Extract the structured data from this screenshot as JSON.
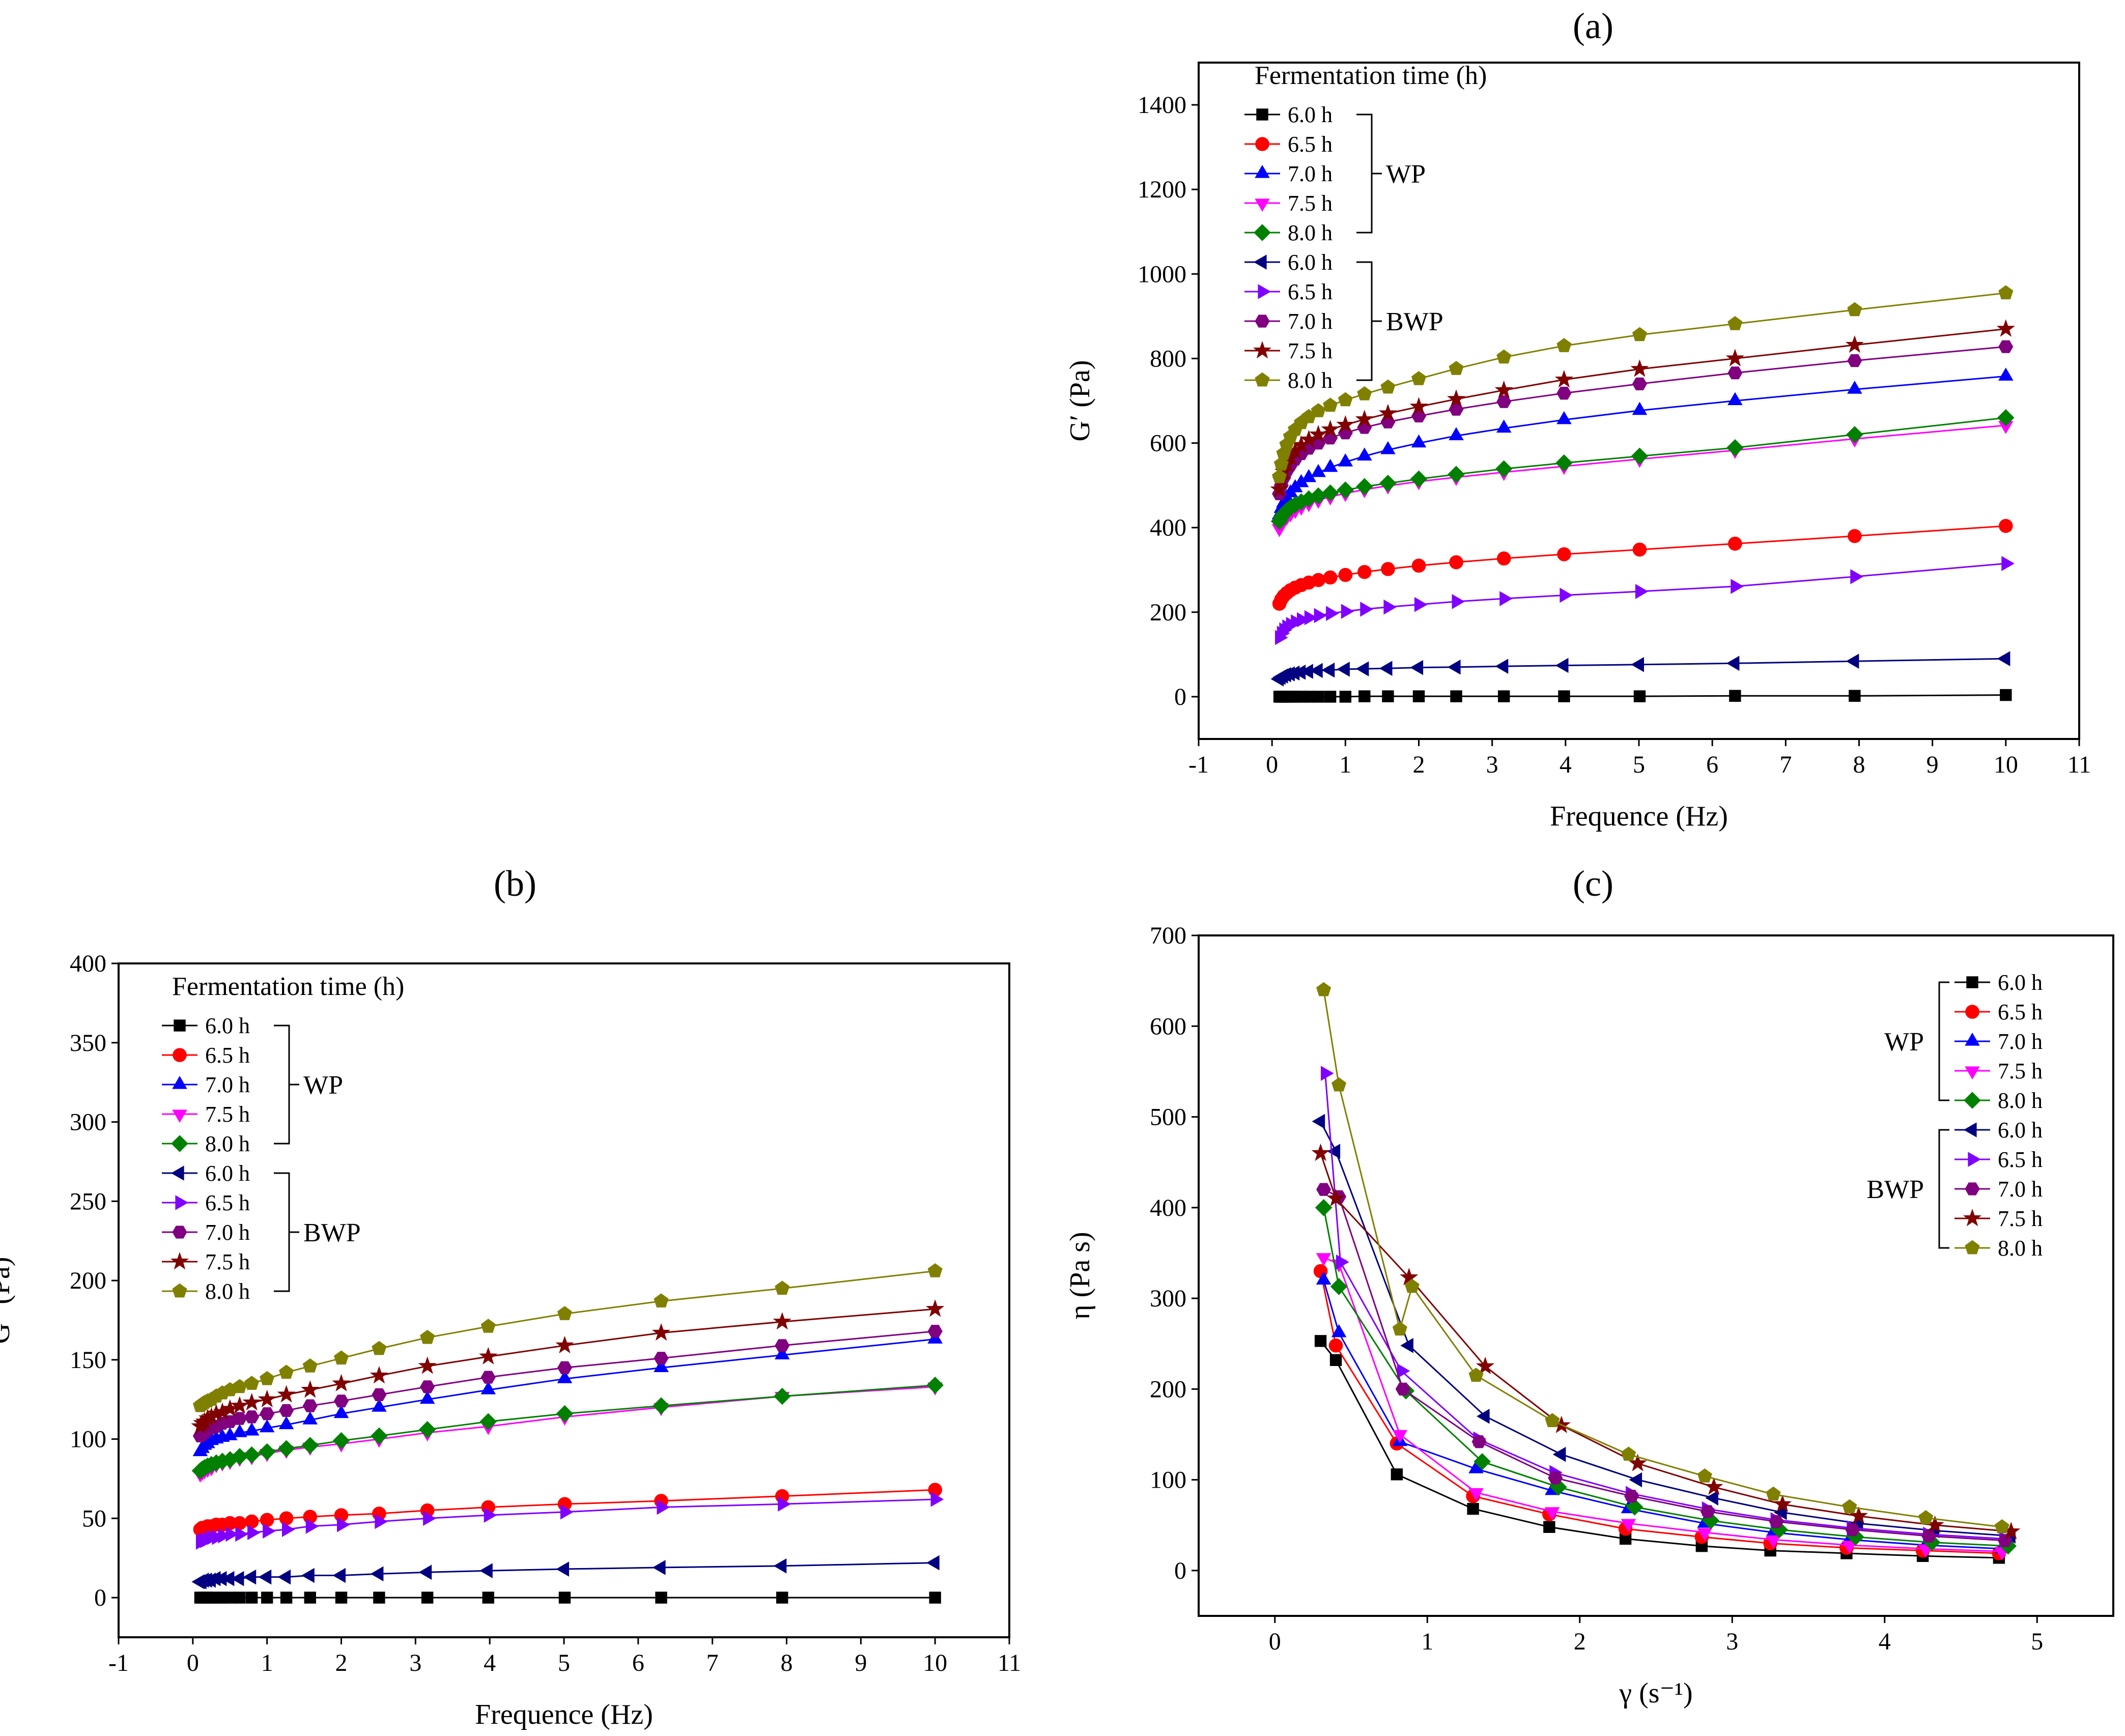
{
  "chart_data": [
    {
      "id": "a",
      "type": "line",
      "panel_label": "(a)",
      "title": "",
      "xlabel": "Frequence (Hz)",
      "ylabel": "G′ (Pa)",
      "xlim": [
        -1,
        11
      ],
      "ylim": [
        -100,
        1500
      ],
      "xticks": [
        -1,
        0,
        1,
        2,
        3,
        4,
        5,
        6,
        7,
        8,
        9,
        10,
        11
      ],
      "yticks": [
        0,
        200,
        400,
        600,
        800,
        1000,
        1200,
        1400
      ],
      "legend": {
        "title": "Fermentation time (h)",
        "position": "top-left",
        "groups": [
          {
            "name": "WP",
            "labels": [
              "6.0 h",
              "6.5 h",
              "7.0 h",
              "7.5 h",
              "8.0 h"
            ]
          },
          {
            "name": "BWP",
            "labels": [
              "6.0 h",
              "6.5 h",
              "7.0 h",
              "7.5 h",
              "8.0 h"
            ]
          }
        ]
      },
      "x": [
        0.1,
        0.126,
        0.158,
        0.2,
        0.251,
        0.316,
        0.398,
        0.501,
        0.631,
        0.794,
        1.0,
        1.26,
        1.58,
        2.0,
        2.51,
        3.16,
        3.98,
        5.01,
        6.31,
        7.94,
        10.0
      ],
      "series": [
        {
          "name": "WP 6.0 h",
          "color": "#000000",
          "marker": "square",
          "values": [
            0,
            0,
            0,
            0,
            0,
            0,
            0,
            0,
            0,
            0,
            0,
            1,
            1,
            1,
            1,
            1,
            1,
            1,
            2,
            2,
            4
          ]
        },
        {
          "name": "WP 6.5 h",
          "color": "#ff0000",
          "marker": "circle",
          "values": [
            220,
            230,
            238,
            245,
            252,
            258,
            264,
            270,
            276,
            282,
            288,
            295,
            302,
            310,
            318,
            327,
            337,
            348,
            362,
            380,
            404
          ]
        },
        {
          "name": "WP 7.0 h",
          "color": "#0000ff",
          "marker": "triangle-up",
          "values": [
            430,
            445,
            458,
            470,
            482,
            494,
            506,
            518,
            530,
            542,
            555,
            569,
            584,
            600,
            617,
            635,
            655,
            677,
            700,
            727,
            758
          ]
        },
        {
          "name": "WP 7.5 h",
          "color": "#ff00ff",
          "marker": "triangle-down",
          "values": [
            398,
            408,
            417,
            425,
            433,
            441,
            449,
            457,
            465,
            473,
            481,
            490,
            499,
            509,
            519,
            531,
            545,
            562,
            583,
            610,
            642
          ]
        },
        {
          "name": "WP 8.0 h",
          "color": "#008000",
          "marker": "diamond",
          "values": [
            415,
            424,
            432,
            440,
            447,
            454,
            461,
            468,
            475,
            482,
            489,
            497,
            505,
            515,
            526,
            539,
            553,
            569,
            589,
            620,
            660
          ]
        },
        {
          "name": "BWP 6.0 h",
          "color": "#000080",
          "marker": "triangle-left",
          "values": [
            42,
            46,
            49,
            52,
            54,
            56,
            58,
            60,
            62,
            63,
            65,
            66,
            67,
            69,
            70,
            72,
            74,
            76,
            79,
            84,
            90
          ]
        },
        {
          "name": "BWP 6.5 h",
          "color": "#8000ff",
          "marker": "triangle-right",
          "values": [
            140,
            150,
            158,
            165,
            171,
            177,
            182,
            187,
            192,
            197,
            202,
            207,
            212,
            218,
            225,
            232,
            240,
            249,
            261,
            284,
            315
          ]
        },
        {
          "name": "BWP 7.0 h",
          "color": "#800080",
          "marker": "hexagon",
          "values": [
            480,
            500,
            518,
            534,
            548,
            562,
            575,
            588,
            600,
            612,
            624,
            637,
            650,
            664,
            680,
            698,
            718,
            740,
            766,
            795,
            828
          ]
        },
        {
          "name": "BWP 7.5 h",
          "color": "#800000",
          "marker": "star",
          "values": [
            490,
            512,
            532,
            550,
            566,
            581,
            595,
            608,
            620,
            632,
            643,
            656,
            670,
            686,
            704,
            725,
            750,
            775,
            800,
            832,
            870
          ]
        },
        {
          "name": "BWP 8.0 h",
          "color": "#808000",
          "marker": "pentagon",
          "values": [
            520,
            550,
            575,
            596,
            615,
            632,
            648,
            662,
            676,
            689,
            702,
            716,
            732,
            752,
            776,
            803,
            830,
            856,
            882,
            915,
            955
          ]
        }
      ]
    },
    {
      "id": "b",
      "type": "line",
      "panel_label": "(b)",
      "title": "",
      "xlabel": "Frequence (Hz)",
      "ylabel": "G″ (Pa)",
      "xlim": [
        -1,
        11
      ],
      "ylim": [
        -25,
        400
      ],
      "xticks": [
        -1,
        0,
        1,
        2,
        3,
        4,
        5,
        6,
        7,
        8,
        9,
        10,
        11
      ],
      "yticks": [
        0,
        50,
        100,
        150,
        200,
        250,
        300,
        350,
        400
      ],
      "legend": {
        "title": "Fermentation time (h)",
        "position": "top-left",
        "groups": [
          {
            "name": "WP",
            "labels": [
              "6.0 h",
              "6.5 h",
              "7.0 h",
              "7.5 h",
              "8.0 h"
            ]
          },
          {
            "name": "BWP",
            "labels": [
              "6.0 h",
              "6.5 h",
              "7.0 h",
              "7.5 h",
              "8.0 h"
            ]
          }
        ]
      },
      "x": [
        0.1,
        0.126,
        0.158,
        0.2,
        0.251,
        0.316,
        0.398,
        0.501,
        0.631,
        0.794,
        1.0,
        1.26,
        1.58,
        2.0,
        2.51,
        3.16,
        3.98,
        5.01,
        6.31,
        7.94,
        10.0
      ],
      "series": [
        {
          "name": "WP 6.0 h",
          "color": "#000000",
          "marker": "square",
          "values": [
            0,
            0,
            0,
            0,
            0,
            0,
            0,
            0,
            0,
            0,
            0,
            0,
            0,
            0,
            0,
            0,
            0,
            0,
            0,
            0,
            0
          ]
        },
        {
          "name": "WP 6.5 h",
          "color": "#ff0000",
          "marker": "circle",
          "values": [
            43,
            44,
            44,
            45,
            45,
            46,
            46,
            47,
            47,
            48,
            49,
            50,
            51,
            52,
            53,
            55,
            57,
            59,
            61,
            64,
            68
          ]
        },
        {
          "name": "WP 7.0 h",
          "color": "#0000ff",
          "marker": "triangle-up",
          "values": [
            92,
            94,
            96,
            97,
            99,
            100,
            101,
            102,
            104,
            105,
            107,
            109,
            112,
            116,
            120,
            125,
            131,
            138,
            145,
            153,
            163
          ]
        },
        {
          "name": "WP 7.5 h",
          "color": "#ff00ff",
          "marker": "triangle-down",
          "values": [
            78,
            79,
            80,
            81,
            82,
            84,
            85,
            86,
            88,
            89,
            91,
            93,
            95,
            97,
            100,
            104,
            108,
            114,
            120,
            127,
            133
          ]
        },
        {
          "name": "WP 8.0 h",
          "color": "#008000",
          "marker": "diamond",
          "values": [
            80,
            81,
            82,
            83,
            84,
            85,
            86,
            87,
            89,
            90,
            92,
            94,
            96,
            99,
            102,
            106,
            111,
            116,
            121,
            127,
            134
          ]
        },
        {
          "name": "BWP 6.0 h",
          "color": "#000080",
          "marker": "triangle-left",
          "values": [
            10,
            10,
            11,
            11,
            11,
            12,
            12,
            12,
            12,
            13,
            13,
            13,
            14,
            14,
            15,
            16,
            17,
            18,
            19,
            20,
            22
          ]
        },
        {
          "name": "BWP 6.5 h",
          "color": "#8000ff",
          "marker": "triangle-right",
          "values": [
            35,
            36,
            36,
            37,
            38,
            38,
            39,
            40,
            40,
            41,
            42,
            43,
            45,
            46,
            48,
            50,
            52,
            54,
            57,
            59,
            62
          ]
        },
        {
          "name": "BWP 7.0 h",
          "color": "#800080",
          "marker": "hexagon",
          "values": [
            102,
            103,
            104,
            106,
            107,
            108,
            110,
            111,
            113,
            114,
            116,
            118,
            121,
            124,
            128,
            133,
            139,
            145,
            151,
            159,
            168
          ]
        },
        {
          "name": "BWP 7.5 h",
          "color": "#800000",
          "marker": "star",
          "values": [
            108,
            110,
            111,
            113,
            114,
            116,
            117,
            119,
            121,
            123,
            125,
            128,
            131,
            135,
            140,
            146,
            152,
            159,
            167,
            174,
            182
          ]
        },
        {
          "name": "BWP 8.0 h",
          "color": "#808000",
          "marker": "pentagon",
          "values": [
            121,
            122,
            123,
            124,
            125,
            127,
            129,
            131,
            133,
            135,
            138,
            142,
            146,
            151,
            157,
            164,
            171,
            179,
            187,
            195,
            206
          ]
        }
      ]
    },
    {
      "id": "c",
      "type": "line",
      "panel_label": "(c)",
      "title": "",
      "xlabel": "γ (s⁻¹)",
      "ylabel": "η (Pa s)",
      "xlim": [
        -0.5,
        5.5
      ],
      "ylim": [
        -50,
        700
      ],
      "xticks": [
        0,
        1,
        2,
        3,
        4,
        5
      ],
      "yticks": [
        0,
        100,
        200,
        300,
        400,
        500,
        600,
        700
      ],
      "legend": {
        "title": "",
        "position": "top-right",
        "groups": [
          {
            "name": "WP",
            "labels": [
              "6.0 h",
              "6.5 h",
              "7.0 h",
              "7.5 h",
              "8.0 h"
            ]
          },
          {
            "name": "BWP",
            "labels": [
              "6.0 h",
              "6.5 h",
              "7.0 h",
              "7.5 h",
              "8.0 h"
            ]
          }
        ]
      },
      "series": [
        {
          "name": "WP 6.0 h",
          "color": "#000000",
          "marker": "square",
          "x": [
            0.3,
            0.4,
            0.8,
            1.3,
            1.8,
            2.3,
            2.8,
            3.25,
            3.75,
            4.25,
            4.75
          ],
          "values": [
            253,
            232,
            106,
            68,
            48,
            35,
            27,
            22,
            19,
            16,
            14
          ]
        },
        {
          "name": "WP 6.5 h",
          "color": "#ff0000",
          "marker": "circle",
          "x": [
            0.3,
            0.4,
            0.8,
            1.3,
            1.8,
            2.3,
            2.8,
            3.25,
            3.75,
            4.25,
            4.75
          ],
          "values": [
            330,
            248,
            140,
            82,
            62,
            46,
            37,
            30,
            25,
            22,
            19
          ]
        },
        {
          "name": "WP 7.0 h",
          "color": "#0000ff",
          "marker": "triangle-up",
          "x": [
            0.32,
            0.42,
            0.82,
            1.32,
            1.82,
            2.32,
            2.82,
            3.27,
            3.77,
            4.27,
            4.77
          ],
          "values": [
            320,
            262,
            142,
            112,
            88,
            68,
            52,
            42,
            34,
            28,
            24
          ]
        },
        {
          "name": "WP 7.5 h",
          "color": "#ff00ff",
          "marker": "triangle-down",
          "x": [
            0.32,
            0.42,
            0.82,
            1.32,
            1.82,
            2.32,
            2.82,
            3.27,
            3.77,
            4.27,
            4.77
          ],
          "values": [
            345,
            338,
            150,
            86,
            65,
            52,
            42,
            34,
            28,
            24,
            21
          ]
        },
        {
          "name": "WP 8.0 h",
          "color": "#008000",
          "marker": "diamond",
          "x": [
            0.32,
            0.42,
            0.86,
            1.36,
            1.86,
            2.36,
            2.86,
            3.31,
            3.81,
            4.31,
            4.81
          ],
          "values": [
            400,
            313,
            198,
            120,
            92,
            70,
            55,
            45,
            37,
            31,
            27
          ]
        },
        {
          "name": "BWP 6.0 h",
          "color": "#000080",
          "marker": "triangle-left",
          "x": [
            0.3,
            0.4,
            0.88,
            1.38,
            1.88,
            2.38,
            2.88,
            3.33,
            3.83,
            4.33,
            4.83
          ],
          "values": [
            495,
            462,
            248,
            170,
            128,
            100,
            80,
            64,
            52,
            44,
            38
          ]
        },
        {
          "name": "BWP 6.5 h",
          "color": "#8000ff",
          "marker": "triangle-right",
          "x": [
            0.33,
            0.43,
            0.83,
            1.33,
            1.83,
            2.33,
            2.83,
            3.28,
            3.78,
            4.28,
            4.78
          ],
          "values": [
            548,
            340,
            220,
            145,
            108,
            85,
            68,
            56,
            47,
            40,
            35
          ]
        },
        {
          "name": "BWP 7.0 h",
          "color": "#800080",
          "marker": "hexagon",
          "x": [
            0.32,
            0.42,
            0.84,
            1.34,
            1.84,
            2.34,
            2.84,
            3.29,
            3.79,
            4.29,
            4.79
          ],
          "values": [
            420,
            412,
            200,
            142,
            102,
            82,
            65,
            54,
            45,
            38,
            33
          ]
        },
        {
          "name": "BWP 7.5 h",
          "color": "#800000",
          "marker": "star",
          "x": [
            0.3,
            0.4,
            0.88,
            1.38,
            1.88,
            2.38,
            2.88,
            3.33,
            3.83,
            4.33,
            4.83
          ],
          "values": [
            460,
            410,
            323,
            225,
            160,
            118,
            92,
            73,
            60,
            50,
            43
          ]
        },
        {
          "name": "BWP 8.0 h",
          "color": "#808000",
          "marker": "pentagon",
          "x": [
            0.32,
            0.42,
            0.82,
            0.9,
            1.32,
            1.82,
            2.32,
            2.82,
            3.27,
            3.77,
            4.27,
            4.77
          ],
          "values": [
            640,
            535,
            266,
            313,
            215,
            165,
            128,
            104,
            84,
            70,
            58,
            48
          ]
        }
      ]
    }
  ]
}
